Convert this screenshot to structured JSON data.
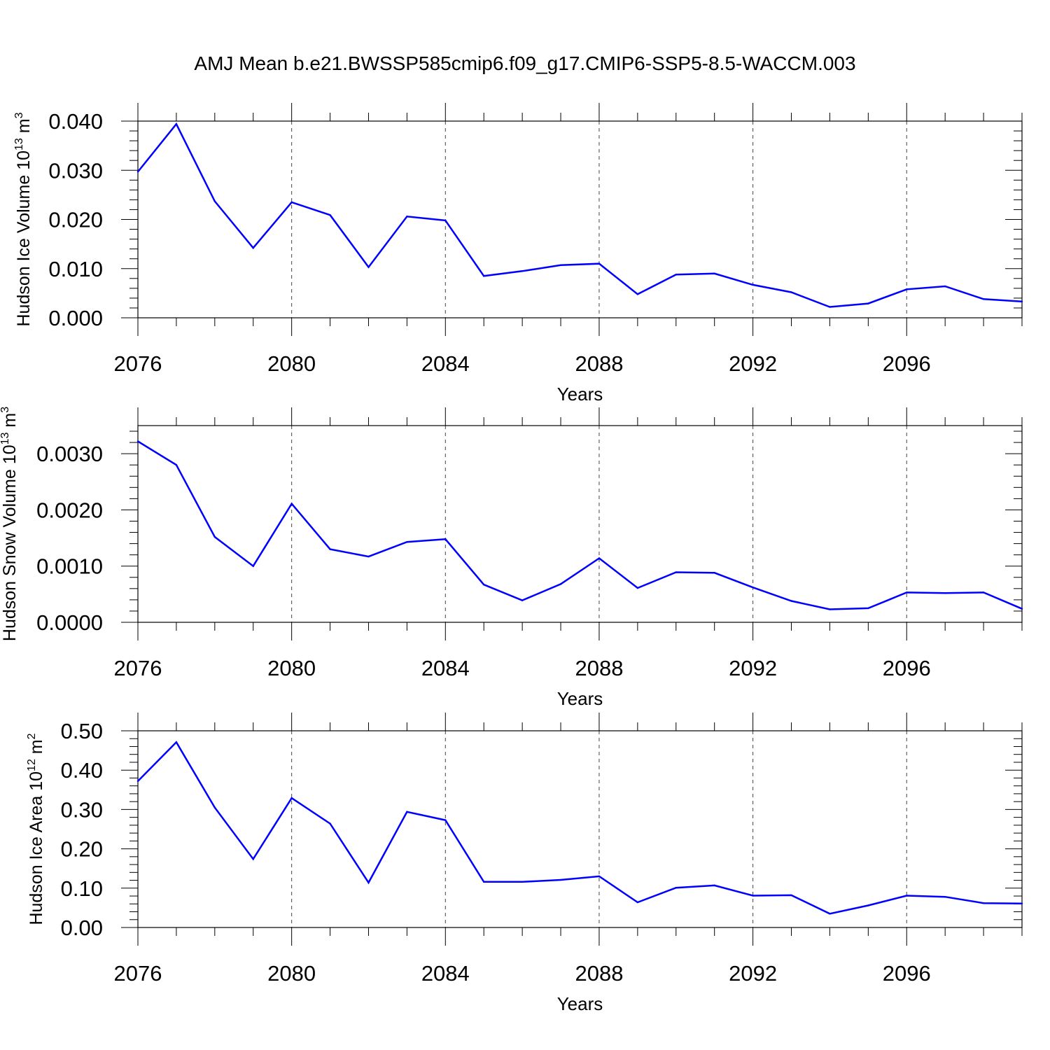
{
  "title": "AMJ Mean b.e21.BWSSP585cmip6.f09_g17.CMIP6-SSP5-8.5-WACCM.003",
  "line_color": "#0000ff",
  "chart_data": [
    {
      "type": "line",
      "ylabel_main": "Hudson Ice Volume 10",
      "ylabel_exp": "13",
      "ylabel_unit": " m",
      "ylabel_unit_exp": "3",
      "xlabel": "Years",
      "xlim": [
        2076,
        2099
      ],
      "ylim": [
        0,
        0.04
      ],
      "xticks": [
        2076,
        2080,
        2084,
        2088,
        2092,
        2096
      ],
      "xtick_labels": [
        "2076",
        "2080",
        "2084",
        "2088",
        "2092",
        "2096"
      ],
      "yticks": [
        0,
        0.01,
        0.02,
        0.03,
        0.04
      ],
      "ytick_labels": [
        "0.000",
        "0.010",
        "0.020",
        "0.030",
        "0.040"
      ],
      "grid_x": true,
      "x": [
        2076,
        2077,
        2078,
        2079,
        2080,
        2081,
        2082,
        2083,
        2084,
        2085,
        2086,
        2087,
        2088,
        2089,
        2090,
        2091,
        2092,
        2093,
        2094,
        2095,
        2096,
        2097,
        2098,
        2099
      ],
      "y": [
        0.0297,
        0.0394,
        0.0237,
        0.0142,
        0.0235,
        0.0209,
        0.0103,
        0.0206,
        0.0198,
        0.0085,
        0.0095,
        0.0107,
        0.011,
        0.0048,
        0.0088,
        0.009,
        0.0067,
        0.0052,
        0.0022,
        0.0029,
        0.0058,
        0.0064,
        0.0038,
        0.0033
      ]
    },
    {
      "type": "line",
      "ylabel_main": "Hudson Snow Volume 10",
      "ylabel_exp": "13",
      "ylabel_unit": " m",
      "ylabel_unit_exp": "3",
      "xlabel": "Years",
      "xlim": [
        2076,
        2099
      ],
      "ylim": [
        0,
        0.0035
      ],
      "xticks": [
        2076,
        2080,
        2084,
        2088,
        2092,
        2096
      ],
      "xtick_labels": [
        "2076",
        "2080",
        "2084",
        "2088",
        "2092",
        "2096"
      ],
      "yticks": [
        0,
        0.001,
        0.002,
        0.003
      ],
      "ytick_labels": [
        "0.0000",
        "0.0010",
        "0.0020",
        "0.0030"
      ],
      "grid_x": true,
      "x": [
        2076,
        2077,
        2078,
        2079,
        2080,
        2081,
        2082,
        2083,
        2084,
        2085,
        2086,
        2087,
        2088,
        2089,
        2090,
        2091,
        2092,
        2093,
        2094,
        2095,
        2096,
        2097,
        2098,
        2099
      ],
      "y": [
        0.00322,
        0.0028,
        0.00152,
        0.001,
        0.00211,
        0.0013,
        0.00117,
        0.00143,
        0.00148,
        0.00067,
        0.00039,
        0.00068,
        0.00114,
        0.00061,
        0.00089,
        0.00088,
        0.00062,
        0.00038,
        0.00023,
        0.00025,
        0.00053,
        0.00052,
        0.00053,
        0.00024
      ]
    },
    {
      "type": "line",
      "ylabel_main": "Hudson Ice Area 10",
      "ylabel_exp": "12",
      "ylabel_unit": " m",
      "ylabel_unit_exp": "2",
      "xlabel": "Years",
      "xlim": [
        2076,
        2099
      ],
      "ylim": [
        0,
        0.5
      ],
      "xticks": [
        2076,
        2080,
        2084,
        2088,
        2092,
        2096
      ],
      "xtick_labels": [
        "2076",
        "2080",
        "2084",
        "2088",
        "2092",
        "2096"
      ],
      "yticks": [
        0,
        0.1,
        0.2,
        0.3,
        0.4,
        0.5
      ],
      "ytick_labels": [
        "0.00",
        "0.10",
        "0.20",
        "0.30",
        "0.40",
        "0.50"
      ],
      "grid_x": true,
      "x": [
        2076,
        2077,
        2078,
        2079,
        2080,
        2081,
        2082,
        2083,
        2084,
        2085,
        2086,
        2087,
        2088,
        2089,
        2090,
        2091,
        2092,
        2093,
        2094,
        2095,
        2096,
        2097,
        2098,
        2099
      ],
      "y": [
        0.372,
        0.471,
        0.305,
        0.174,
        0.329,
        0.264,
        0.114,
        0.294,
        0.273,
        0.116,
        0.116,
        0.121,
        0.13,
        0.064,
        0.101,
        0.107,
        0.081,
        0.082,
        0.035,
        0.056,
        0.081,
        0.078,
        0.062,
        0.061
      ]
    }
  ]
}
